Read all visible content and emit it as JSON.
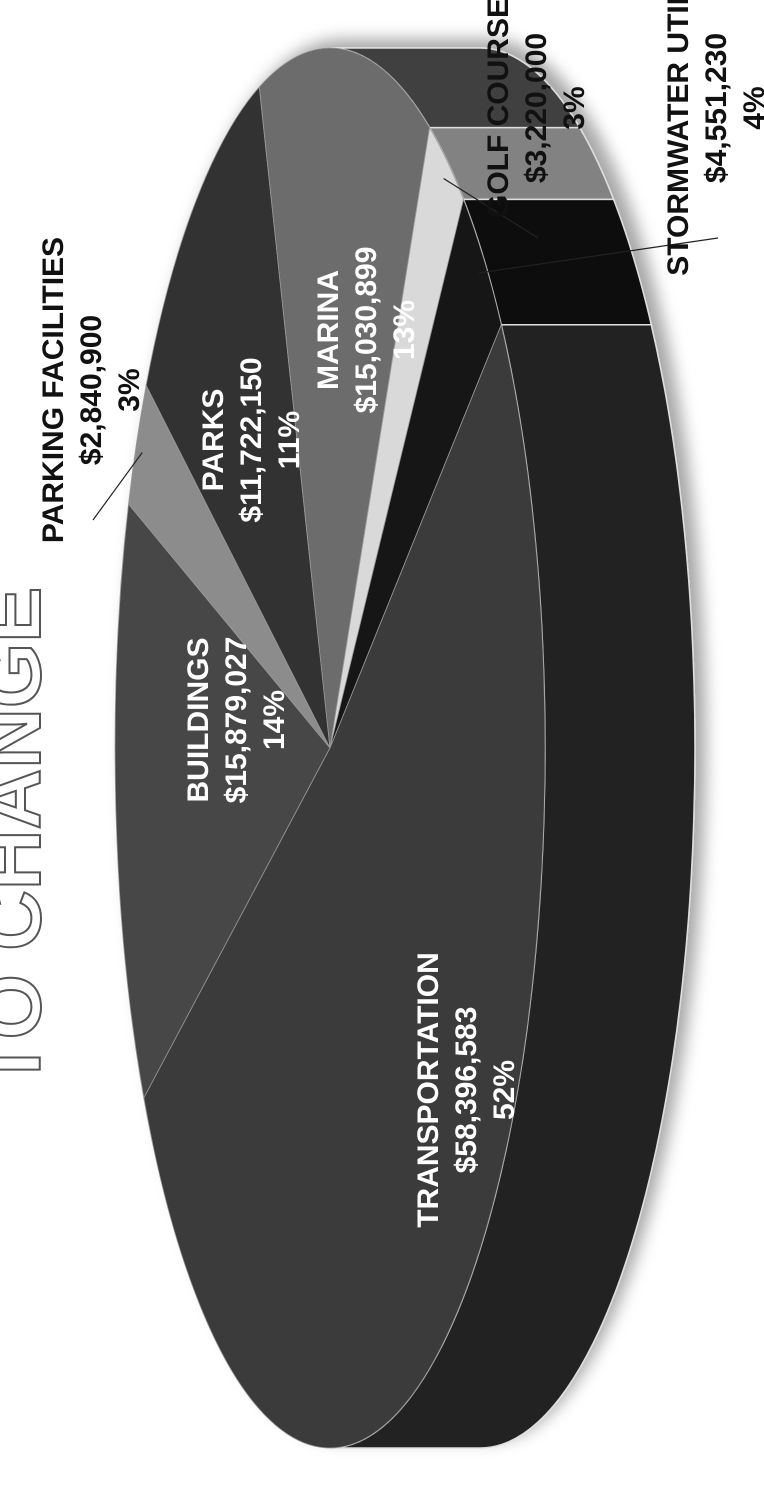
{
  "chart_data": {
    "type": "pie",
    "title": "TO CHANGE",
    "categories": [
      "BUILDINGS",
      "PARKING FACILITIES",
      "PARKS",
      "MARINA",
      "GOLF COURSE",
      "STORMWATER UTILITY",
      "TRANSPORTATION"
    ],
    "values": [
      14,
      3,
      11,
      13,
      3,
      4,
      52
    ],
    "value_labels": [
      "14%",
      "3%",
      "11%",
      "13%",
      "3%",
      "4%",
      "52%"
    ],
    "amount_labels": [
      "$15,879,027",
      "$2,840,900",
      "$11,722,150",
      "$15,030,899",
      "$3,220,000",
      "$4,551,230",
      "$58,396,583"
    ],
    "colors": [
      "#474747",
      "#8c8c8c",
      "#333333",
      "#6c6c6c",
      "#d9d9d9",
      "#121212",
      "#3b3b3b"
    ]
  }
}
